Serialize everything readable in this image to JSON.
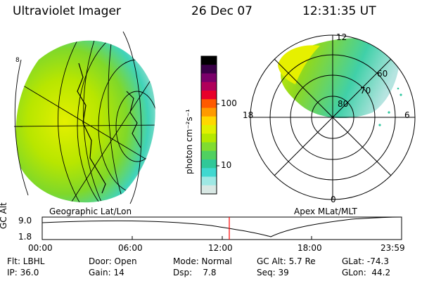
{
  "header": {
    "instrument": "Ultraviolet Imager",
    "date": "26 Dec 07",
    "time": "12:31:35 UT"
  },
  "panels": {
    "geo_label": "Geographic Lat/Lon",
    "apex_label": "Apex MLat/MLT",
    "geo_edge_label": "8"
  },
  "colorbar": {
    "unit_label": "photon cm⁻²s⁻¹",
    "ticks": [
      "100",
      "10"
    ],
    "colors": [
      "#000000",
      "#3a0048",
      "#7a006a",
      "#b0005a",
      "#e8002a",
      "#ff5a00",
      "#ff9a00",
      "#ffd800",
      "#e0f000",
      "#b4e800",
      "#80dc30",
      "#50d060",
      "#30c898",
      "#40d8d0",
      "#9ee8e4",
      "#d8e8e4"
    ]
  },
  "polar": {
    "lat_labels": [
      "60",
      "70",
      "80"
    ],
    "mlt_labels": {
      "top": "12",
      "left": "18",
      "right": "6",
      "bottom": "0"
    }
  },
  "altitude_plot": {
    "ylabel": "GC Alt",
    "ytick_high": "9.0",
    "ytick_low": "1.8",
    "xticks": [
      "00:00",
      "06:00",
      "12:00",
      "18:00",
      "23:59"
    ],
    "current_time_marker_color": "#ff0000"
  },
  "status": {
    "row1": [
      {
        "k": "Flt: LBHL"
      },
      {
        "k": "Door: Open"
      },
      {
        "k": "Mode: Normal"
      },
      {
        "k": "GC Alt: 5.7 Re"
      },
      {
        "k": "GLat: -74.3"
      }
    ],
    "row2": [
      {
        "k": "IP: 36.0"
      },
      {
        "k": "Gain: 14"
      },
      {
        "k": "Dsp:    7.8"
      },
      {
        "k": "Seq: 39"
      },
      {
        "k": "GLon:  44.2"
      }
    ]
  }
}
